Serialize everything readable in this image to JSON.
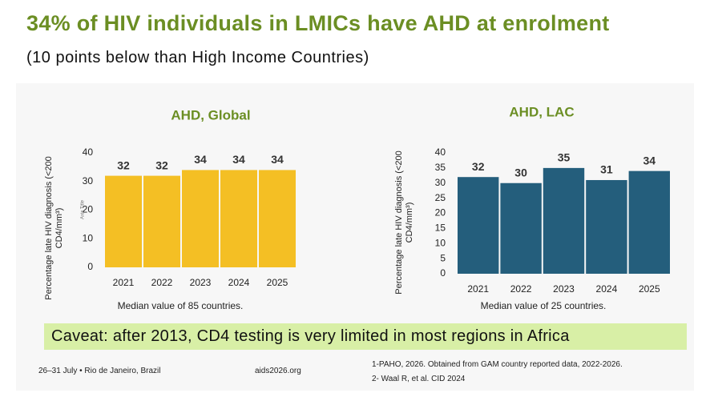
{
  "title": "34% of HIV individuals in LMICs have AHD at enrolment",
  "subtitle": "(10 points below than High Income Countries)",
  "chart_data": [
    {
      "type": "bar",
      "title": "AHD, Global",
      "y_label": "Percentage late HIV diagnosis (<200 CD4/mm³)",
      "inner_axis_label": "Axis Title",
      "note": "Median value of 85 countries.",
      "categories": [
        "2021",
        "2022",
        "2023",
        "2024",
        "2025"
      ],
      "values": [
        32,
        32,
        34,
        34,
        34
      ],
      "color": "#f4bf24",
      "ylim": [
        0,
        40
      ],
      "yticks": [
        0,
        10,
        20,
        30,
        40
      ]
    },
    {
      "type": "bar",
      "title": "AHD, LAC",
      "y_label": "Percentage late HIV diagnosis (<200 CD4/mm³)",
      "note": "Median value of 25 countries.",
      "categories": [
        "2021",
        "2022",
        "2023",
        "2024",
        "2025"
      ],
      "values": [
        32,
        30,
        35,
        31,
        34
      ],
      "color": "#245e7c",
      "ylim": [
        0,
        40
      ],
      "yticks": [
        0,
        5,
        10,
        15,
        20,
        25,
        30,
        35,
        40
      ]
    }
  ],
  "caveat": "Caveat: after 2013, CD4 testing is very limited in most regions in Africa",
  "footer": {
    "event": "26–31 July • Rio de Janeiro, Brazil",
    "site": "aids2026.org",
    "references": [
      "1-PAHO, 2026. Obtained from GAM country reported data, 2022-2026.",
      "2- Waal R, et al. CID 2024"
    ]
  }
}
